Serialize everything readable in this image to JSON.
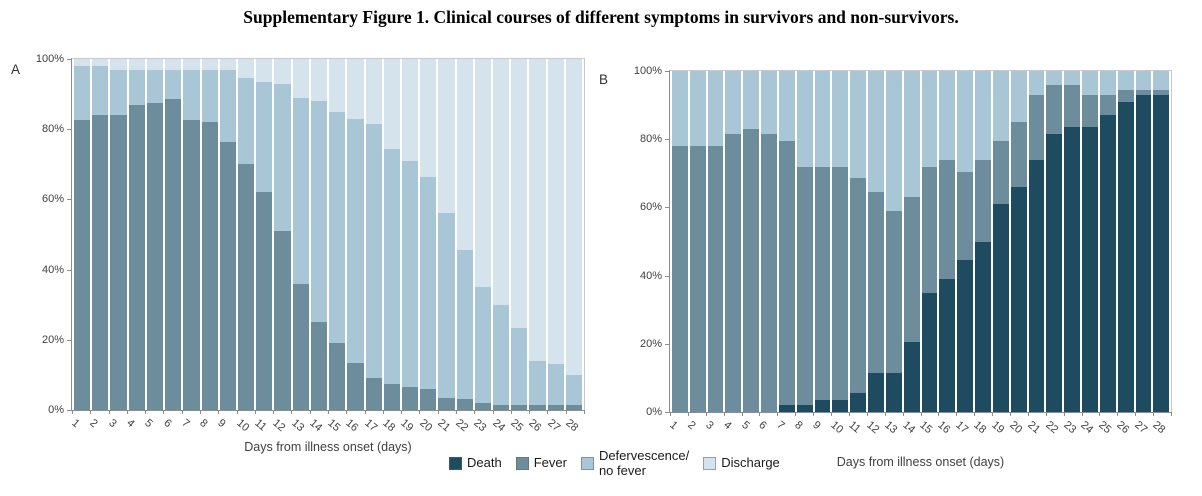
{
  "title": "Supplementary Figure 1. Clinical courses of different symptoms in survivors and non-survivors.",
  "colors": {
    "death": "#1e4b5f",
    "fever": "#6d8c9c",
    "defervescence": "#a9c6d6",
    "discharge": "#d5e3ed",
    "axis_line": "#8c8c8c",
    "plot_border": "#c8c8c8",
    "axis_text": "#404040"
  },
  "legend": {
    "items": [
      {
        "key": "death",
        "label": "Death",
        "color": "#1e4b5f"
      },
      {
        "key": "fever",
        "label": "Fever",
        "color": "#6d8c9c"
      },
      {
        "key": "defervescence",
        "label": "Defervescence/no fever",
        "label_lines": [
          "Defervescence/",
          "no fever"
        ],
        "color": "#a9c6d6"
      },
      {
        "key": "discharge",
        "label": "Discharge",
        "color": "#d5e3ed"
      }
    ]
  },
  "chart_data": [
    {
      "panel_label": "A",
      "type": "bar",
      "subtype": "stacked-100-percent",
      "xlabel": "Days from illness onset (days)",
      "ylim": [
        0,
        100
      ],
      "ytick_labels": [
        "0%",
        "20%",
        "40%",
        "60%",
        "80%",
        "100%"
      ],
      "categories": [
        "1",
        "2",
        "3",
        "4",
        "5",
        "6",
        "7",
        "8",
        "9",
        "10",
        "11",
        "12",
        "13",
        "14",
        "15",
        "16",
        "17",
        "18",
        "19",
        "20",
        "21",
        "22",
        "23",
        "24",
        "25",
        "26",
        "27",
        "28"
      ],
      "series": [
        {
          "name": "Death",
          "color": "#1e4b5f",
          "values": [
            0,
            0,
            0,
            0,
            0,
            0,
            0,
            0,
            0,
            0,
            0,
            0,
            0,
            0,
            0,
            0,
            0,
            0,
            0,
            0,
            0,
            0,
            0,
            0,
            0,
            0,
            0,
            0
          ]
        },
        {
          "name": "Fever",
          "color": "#6d8c9c",
          "values": [
            82.5,
            84,
            84,
            87,
            87.5,
            88.5,
            82.5,
            82,
            76.5,
            70,
            62,
            51,
            36,
            25,
            19,
            13.5,
            9,
            7.5,
            6.5,
            6,
            3.5,
            3,
            2,
            1.5,
            1.5,
            1.5,
            1.5,
            1.5
          ]
        },
        {
          "name": "Defervescence/no fever",
          "color": "#a9c6d6",
          "values": [
            15.5,
            14,
            13,
            10,
            9.5,
            8.5,
            14.5,
            15,
            20.5,
            24.5,
            31.5,
            42,
            53,
            63,
            66,
            69.5,
            72.5,
            67,
            64.5,
            60.5,
            52.5,
            42.5,
            33,
            28.5,
            22,
            12.5,
            11.5,
            8.5
          ]
        },
        {
          "name": "Discharge",
          "color": "#d5e3ed",
          "values": [
            2,
            2,
            3,
            3,
            3,
            3,
            3,
            3,
            3,
            5.5,
            6.5,
            7,
            11,
            12,
            15,
            17,
            18.5,
            25.5,
            29,
            33.5,
            44,
            54.5,
            65,
            70,
            76.5,
            86,
            87,
            90
          ]
        }
      ]
    },
    {
      "panel_label": "B",
      "type": "bar",
      "subtype": "stacked-100-percent",
      "xlabel": "Days from illness onset (days)",
      "ylim": [
        0,
        100
      ],
      "ytick_labels": [
        "0%",
        "20%",
        "40%",
        "60%",
        "80%",
        "100%"
      ],
      "categories": [
        "1",
        "2",
        "3",
        "4",
        "5",
        "6",
        "7",
        "8",
        "9",
        "10",
        "11",
        "12",
        "13",
        "14",
        "15",
        "16",
        "17",
        "18",
        "19",
        "20",
        "21",
        "22",
        "23",
        "24",
        "25",
        "26",
        "27",
        "28"
      ],
      "series": [
        {
          "name": "Death",
          "color": "#1e4b5f",
          "values": [
            0,
            0,
            0,
            0,
            0,
            0,
            2,
            2,
            3.5,
            3.5,
            5.5,
            11.5,
            11.5,
            20.5,
            35,
            39,
            44.5,
            50,
            61,
            66,
            74,
            81.5,
            83.5,
            83.5,
            87,
            91,
            93,
            93
          ]
        },
        {
          "name": "Fever",
          "color": "#6d8c9c",
          "values": [
            78,
            78,
            78,
            81.5,
            83,
            81.5,
            77.5,
            70,
            68.5,
            68.5,
            63,
            53,
            47.5,
            42.5,
            37,
            35,
            26,
            24,
            18.5,
            19,
            19,
            14.5,
            12.5,
            9.5,
            6,
            3.5,
            1.5,
            1.5
          ]
        },
        {
          "name": "Defervescence/no fever",
          "color": "#a9c6d6",
          "values": [
            22,
            22,
            22,
            18.5,
            17,
            18.5,
            20.5,
            28,
            28,
            28,
            31.5,
            35.5,
            41,
            37,
            28,
            26,
            29.5,
            26,
            20.5,
            15,
            7,
            4,
            4,
            7,
            7,
            5.5,
            5.5,
            5.5
          ]
        },
        {
          "name": "Discharge",
          "color": "#d5e3ed",
          "values": [
            0,
            0,
            0,
            0,
            0,
            0,
            0,
            0,
            0,
            0,
            0,
            0,
            0,
            0,
            0,
            0,
            0,
            0,
            0,
            0,
            0,
            0,
            0,
            0,
            0,
            0,
            0,
            0
          ]
        }
      ]
    }
  ]
}
